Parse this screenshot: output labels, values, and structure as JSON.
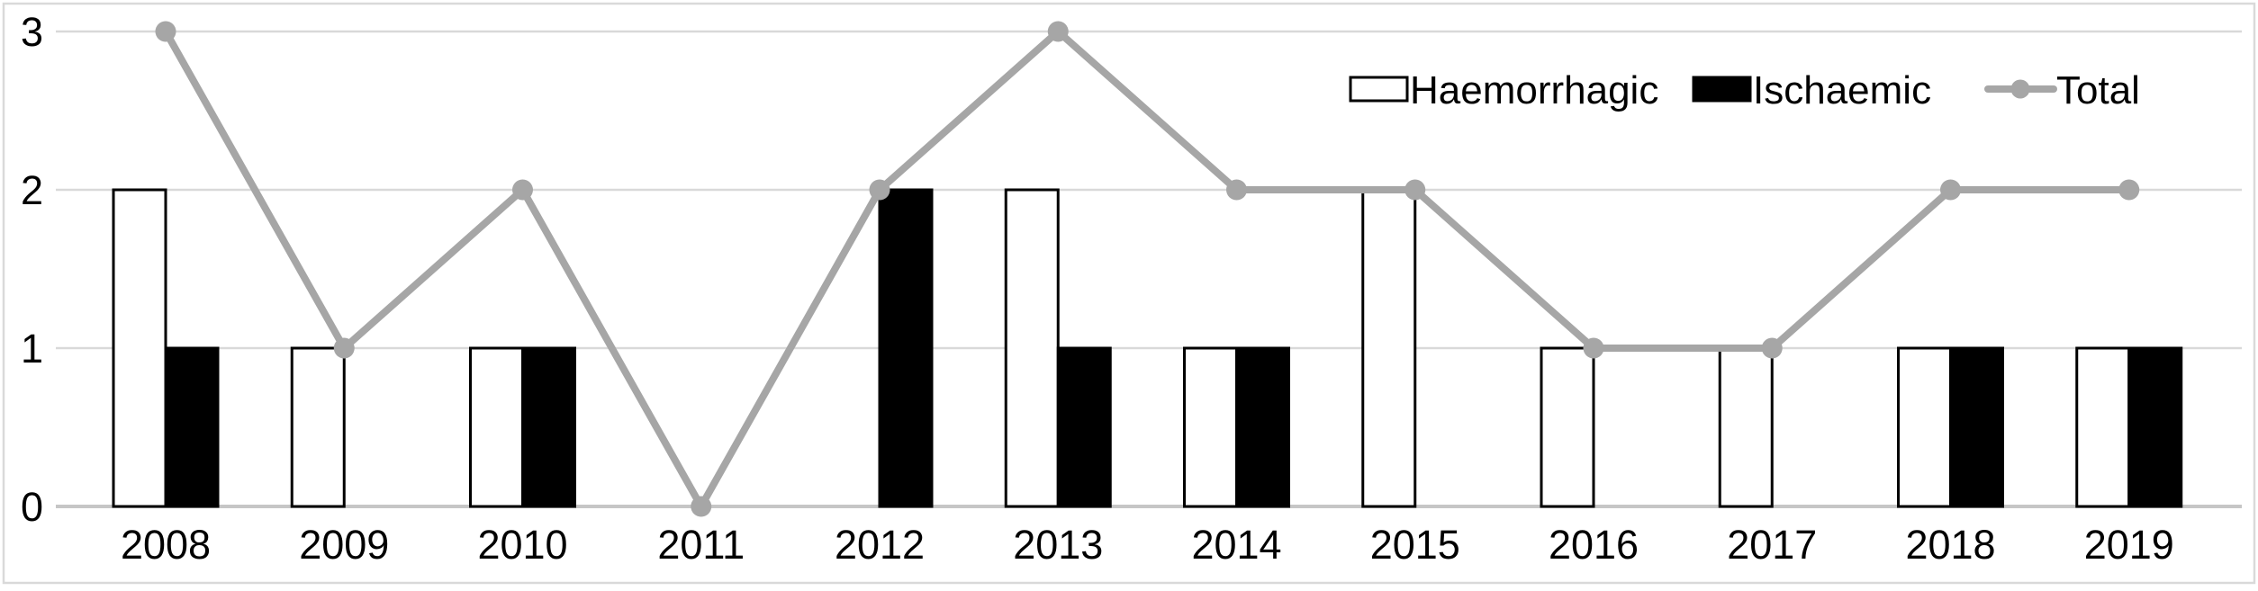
{
  "figure": {
    "background": "#ffffff",
    "border_color": "#d9d9d9"
  },
  "chart_data": {
    "type": "combo-bar-line",
    "title": "",
    "xlabel": "",
    "ylabel": "",
    "categories": [
      "2008",
      "2009",
      "2010",
      "2011",
      "2012",
      "2013",
      "2014",
      "2015",
      "2016",
      "2017",
      "2018",
      "2019"
    ],
    "series": [
      {
        "name": "Haemorrhagic",
        "type": "bar",
        "fill": "#ffffff",
        "stroke": "#000000",
        "values": [
          2,
          1,
          1,
          0,
          0,
          2,
          1,
          2,
          1,
          1,
          1,
          1
        ]
      },
      {
        "name": "Ischaemic",
        "type": "bar",
        "fill": "#000000",
        "stroke": "#000000",
        "values": [
          1,
          0,
          1,
          0,
          2,
          1,
          1,
          0,
          0,
          0,
          1,
          1
        ]
      },
      {
        "name": "Total",
        "type": "line",
        "color": "#a6a6a6",
        "marker": "circle",
        "values": [
          3,
          1,
          2,
          0,
          2,
          3,
          2,
          2,
          1,
          1,
          2,
          2
        ]
      }
    ],
    "yticks": [
      "0",
      "1",
      "2",
      "3"
    ],
    "ylim": [
      0,
      3
    ],
    "grid": true,
    "gridline_color": "#d9d9d9",
    "axis_line_color": "#c6c6c6",
    "legend": {
      "position": "top-right",
      "entries": [
        "Haemorrhagic",
        "Ischaemic",
        "Total"
      ]
    }
  }
}
